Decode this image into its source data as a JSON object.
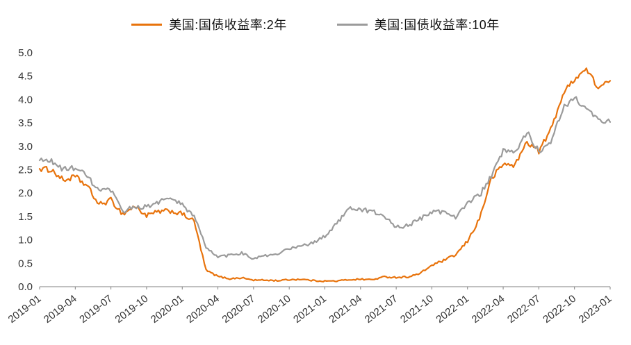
{
  "legend": [
    {
      "label": "美国:国债收益率:2年",
      "color": "#e8730c"
    },
    {
      "label": "美国:国债收益率:10年",
      "color": "#9b9b9b"
    }
  ],
  "chart_data": {
    "type": "line",
    "title": "",
    "xlabel": "",
    "ylabel": "",
    "grid": false,
    "legend_position": "top",
    "ylim": [
      0.0,
      5.0
    ],
    "y_ticks": [
      0.0,
      0.5,
      1.0,
      1.5,
      2.0,
      2.5,
      3.0,
      3.5,
      4.0,
      4.5,
      5.0
    ],
    "x_tick_every": 3,
    "x_tick_labels": [
      "2019-01",
      "2019-04",
      "2019-07",
      "2019-10",
      "2020-01",
      "2020-04",
      "2020-07",
      "2020-10",
      "2021-01",
      "2021-04",
      "2021-07",
      "2021-10",
      "2022-01",
      "2022-04",
      "2022-07",
      "2022-10",
      "2023-01"
    ],
    "x": [
      "2019-01",
      "2019-02",
      "2019-03",
      "2019-04",
      "2019-05",
      "2019-06",
      "2019-07",
      "2019-08",
      "2019-09",
      "2019-10",
      "2019-11",
      "2019-12",
      "2020-01",
      "2020-02",
      "2020-03",
      "2020-04",
      "2020-05",
      "2020-06",
      "2020-07",
      "2020-08",
      "2020-09",
      "2020-10",
      "2020-11",
      "2020-12",
      "2021-01",
      "2021-02",
      "2021-03",
      "2021-04",
      "2021-05",
      "2021-06",
      "2021-07",
      "2021-08",
      "2021-09",
      "2021-10",
      "2021-11",
      "2021-12",
      "2022-01",
      "2022-02",
      "2022-03",
      "2022-04",
      "2022-05",
      "2022-06",
      "2022-07",
      "2022-08",
      "2022-09",
      "2022-10",
      "2022-11",
      "2022-12",
      "2023-01"
    ],
    "series": [
      {
        "name": "美国:国债收益率:2年",
        "color": "#e8730c",
        "values": [
          2.52,
          2.5,
          2.27,
          2.35,
          2.15,
          1.75,
          1.85,
          1.55,
          1.72,
          1.52,
          1.6,
          1.62,
          1.55,
          1.4,
          0.35,
          0.22,
          0.17,
          0.19,
          0.14,
          0.14,
          0.13,
          0.15,
          0.16,
          0.13,
          0.12,
          0.12,
          0.15,
          0.16,
          0.15,
          0.21,
          0.2,
          0.21,
          0.28,
          0.46,
          0.56,
          0.68,
          0.97,
          1.45,
          2.3,
          2.62,
          2.6,
          3.1,
          2.9,
          3.35,
          4.1,
          4.45,
          4.65,
          4.25,
          4.4
        ]
      },
      {
        "name": "美国:国债收益率:10年",
        "color": "#9b9b9b",
        "values": [
          2.7,
          2.68,
          2.5,
          2.55,
          2.35,
          2.05,
          2.05,
          1.6,
          1.72,
          1.7,
          1.82,
          1.88,
          1.75,
          1.5,
          0.85,
          0.63,
          0.67,
          0.72,
          0.6,
          0.66,
          0.68,
          0.82,
          0.87,
          0.93,
          1.08,
          1.35,
          1.7,
          1.65,
          1.6,
          1.5,
          1.28,
          1.3,
          1.45,
          1.6,
          1.6,
          1.5,
          1.8,
          1.95,
          2.35,
          2.9,
          2.85,
          3.3,
          2.9,
          3.1,
          3.8,
          4.05,
          3.8,
          3.55,
          3.52
        ]
      }
    ]
  }
}
